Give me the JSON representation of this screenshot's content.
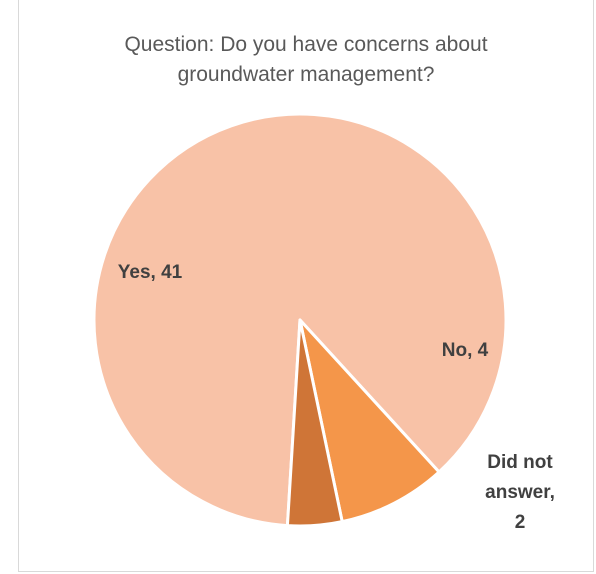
{
  "chart_data": {
    "type": "pie",
    "title_lines": [
      "Question: Do you have concerns about",
      "groundwater management?"
    ],
    "categories": [
      "Yes",
      "No",
      "Did not answer"
    ],
    "values": [
      41,
      4,
      2
    ],
    "colors": [
      "#f8c2a7",
      "#f4964a",
      "#cf7537"
    ],
    "start_angle_deg": -90,
    "legend": "none",
    "data_labels": [
      {
        "lines": [
          "Yes, 41"
        ]
      },
      {
        "lines": [
          "No, 4"
        ]
      },
      {
        "lines": [
          "Did not",
          "answer,",
          "2"
        ]
      }
    ]
  }
}
